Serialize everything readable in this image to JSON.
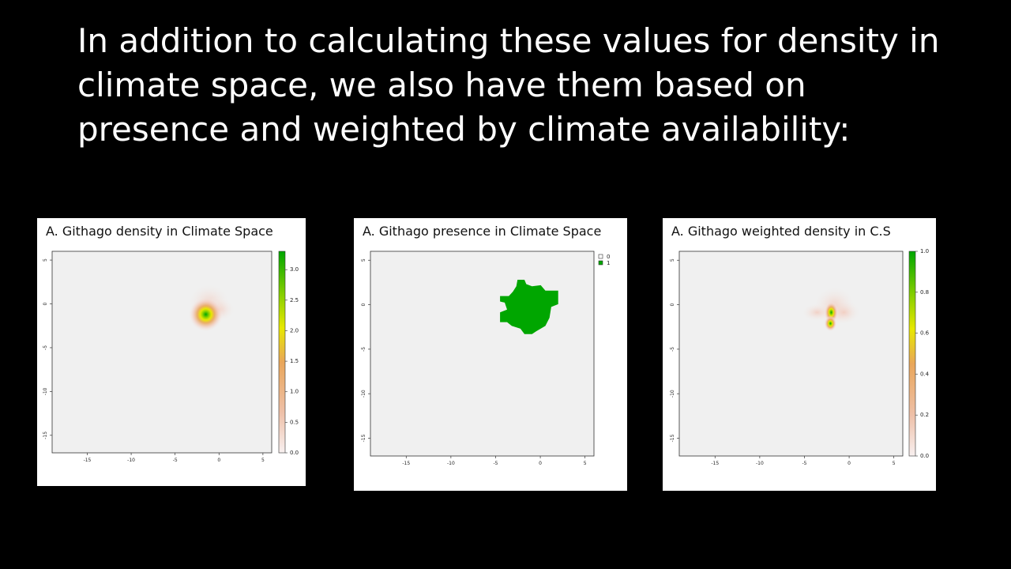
{
  "slide": {
    "title": "In addition to calculating these values for density in climate space, we also have them based on presence and weighted by climate availability:"
  },
  "colors": {
    "background": "#000000",
    "plot_bg": "#f0f0f0",
    "low": "#f2f2f2",
    "orange": "#e9a65a",
    "yellow": "#e8e800",
    "green": "#00a600",
    "presence": "#00a600"
  },
  "chart_data": [
    {
      "type": "heatmap",
      "title": "A. Githago density in Climate Space",
      "x_ticks": [
        "-15",
        "-10",
        "-5",
        "0",
        "5"
      ],
      "y_ticks": [
        "5",
        "0",
        "-5",
        "-10",
        "-15"
      ],
      "xlim": [
        -19,
        6
      ],
      "ylim": [
        -17,
        6
      ],
      "legend": {
        "type": "continuous",
        "ticks": [
          "0.0",
          "0.5",
          "1.0",
          "1.5",
          "2.0",
          "2.5",
          "3.0"
        ],
        "range": [
          0,
          3.3
        ]
      },
      "hotspot": {
        "x": -1.5,
        "y": -1.2,
        "max": 3.3
      }
    },
    {
      "type": "heatmap",
      "title": "A. Githago presence  in Climate Space",
      "x_ticks": [
        "-15",
        "-10",
        "-5",
        "0",
        "5"
      ],
      "y_ticks": [
        "5",
        "0",
        "-5",
        "-10",
        "-15"
      ],
      "xlim": [
        -19,
        6
      ],
      "ylim": [
        -17,
        6
      ],
      "legend": {
        "type": "categorical",
        "labels": [
          "0",
          "1"
        ]
      },
      "presence_region": {
        "x_range": [
          -4.5,
          2
        ],
        "y_range": [
          -3.3,
          2.8
        ]
      }
    },
    {
      "type": "heatmap",
      "title": "A. Githago weighted density in C.S",
      "x_ticks": [
        "-15",
        "-10",
        "-5",
        "0",
        "5"
      ],
      "y_ticks": [
        "5",
        "0",
        "-5",
        "-10",
        "-15"
      ],
      "xlim": [
        -19,
        6
      ],
      "ylim": [
        -17,
        6
      ],
      "legend": {
        "type": "continuous",
        "ticks": [
          "0.0",
          "0.2",
          "0.4",
          "0.6",
          "0.8",
          "1.0"
        ],
        "range": [
          0,
          1
        ]
      },
      "hotspot": {
        "x": -2,
        "y": -1.4,
        "max": 1.0
      }
    }
  ]
}
